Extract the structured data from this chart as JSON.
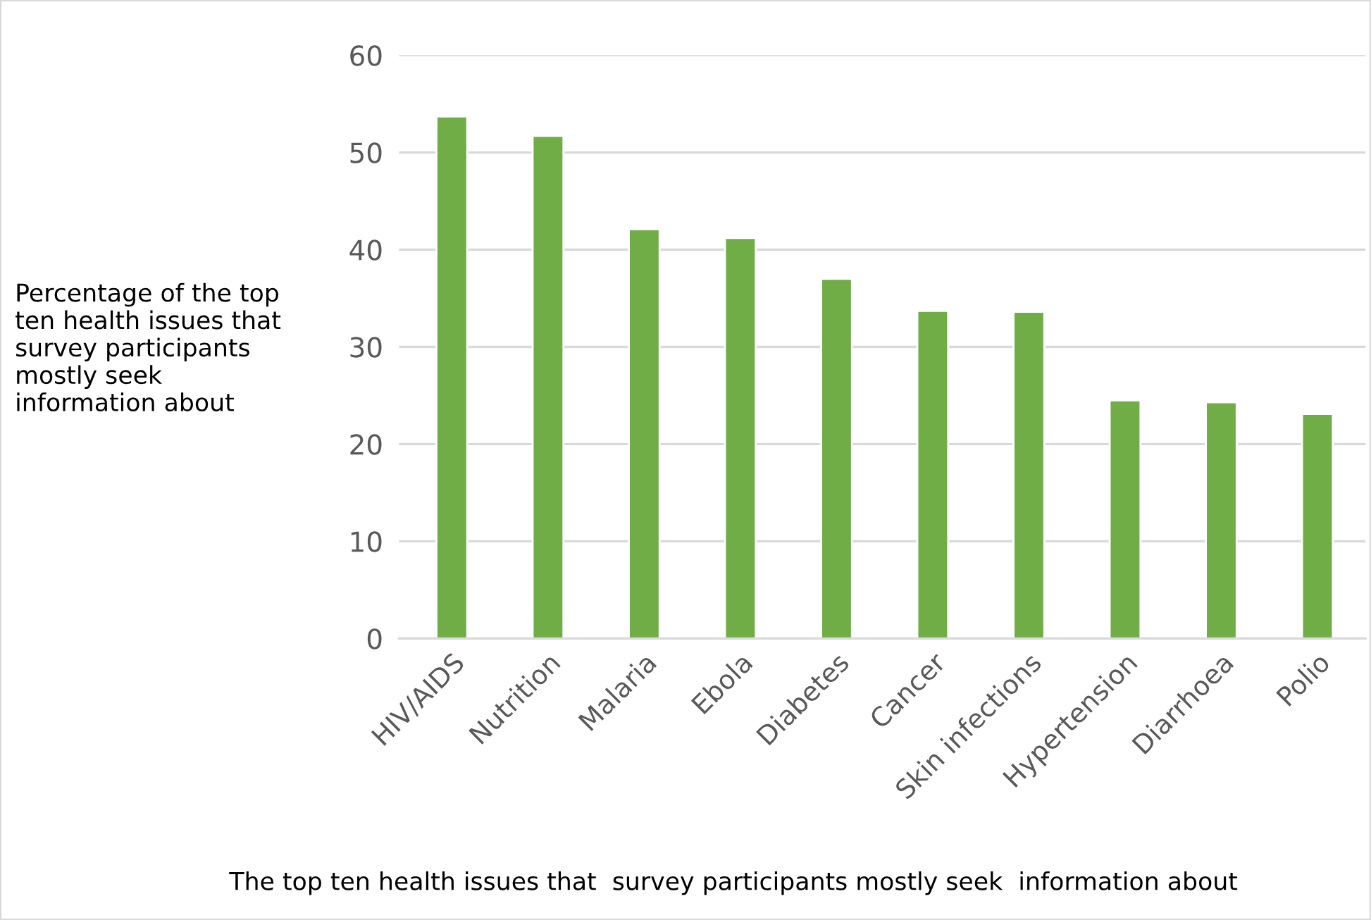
{
  "chart_data": {
    "type": "bar",
    "categories": [
      "HIV/AIDS",
      "Nutrition",
      "Malaria",
      "Ebola",
      "Diabetes",
      "Cancer",
      "Skin infections",
      "Hypertension",
      "Diarrhoea",
      "Polio"
    ],
    "values": [
      53.7,
      51.7,
      42.1,
      41.2,
      37.0,
      33.7,
      33.6,
      24.5,
      24.3,
      23.1
    ],
    "color": "#70ad47",
    "ylim": [
      0,
      60
    ],
    "yticks": [
      0,
      10,
      20,
      30,
      40,
      50,
      60
    ],
    "grid": "y",
    "ylabel": "Percentage of the top ten health issues that survey participants mostly seek information about",
    "xlabel": "The top ten health issues that  survey participants mostly seek  information about"
  }
}
